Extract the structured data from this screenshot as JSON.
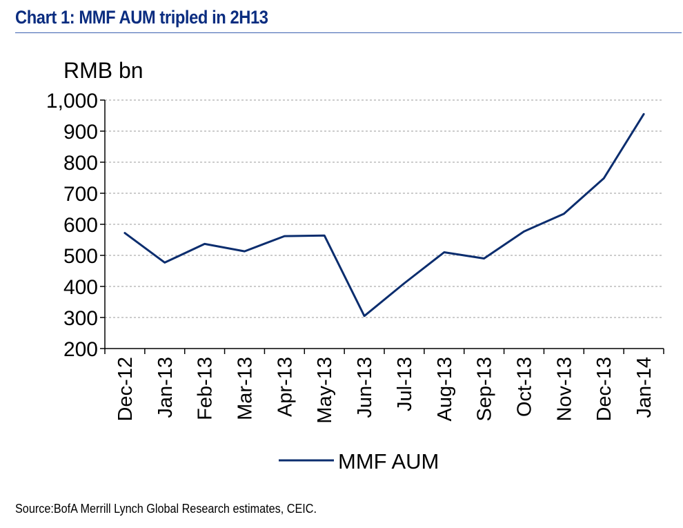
{
  "chart_data": {
    "type": "line",
    "title": "Chart 1: MMF AUM tripled in 2H13",
    "ylabel": "RMB bn",
    "xlabel": "",
    "categories": [
      "Dec-12",
      "Jan-13",
      "Feb-13",
      "Mar-13",
      "Apr-13",
      "May-13",
      "Jun-13",
      "Jul-13",
      "Aug-13",
      "Sep-13",
      "Oct-13",
      "Nov-13",
      "Dec-13",
      "Jan-14"
    ],
    "series": [
      {
        "name": "MMF AUM",
        "color": "#0b2d6e",
        "values": [
          572,
          477,
          537,
          513,
          562,
          564,
          305,
          410,
          510,
          490,
          577,
          634,
          748,
          955
        ]
      }
    ],
    "ylim": [
      200,
      1000
    ],
    "yticks": [
      200,
      300,
      400,
      500,
      600,
      700,
      800,
      900,
      1000
    ],
    "ytick_labels": [
      "200",
      "300",
      "400",
      "500",
      "600",
      "700",
      "800",
      "900",
      "1,000"
    ],
    "grid": true,
    "legend_position": "bottom-center",
    "source": "Source:BofA Merrill Lynch Global Research estimates, CEIC."
  }
}
